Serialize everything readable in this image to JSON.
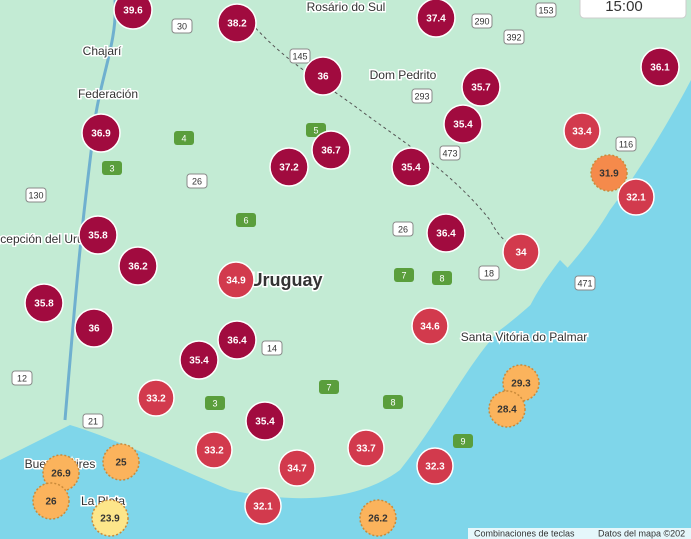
{
  "time": "15:00",
  "markers": [
    {
      "value": 39.6,
      "color": "#a10b3f"
    },
    {
      "value": 38.2,
      "color": "#a10b3f"
    },
    {
      "value": 37.4,
      "color": "#a10b3f"
    },
    {
      "value": 36,
      "color": "#a10b3f"
    },
    {
      "value": 35.7,
      "color": "#a10b3f"
    },
    {
      "value": 36.1,
      "color": "#a10b3f"
    },
    {
      "value": 36.9,
      "color": "#a10b3f"
    },
    {
      "value": 35.4,
      "color": "#a10b3f"
    },
    {
      "value": 33.4,
      "color": "#d23a4d"
    },
    {
      "value": 36.7,
      "color": "#a10b3f"
    },
    {
      "value": 37.2,
      "color": "#a10b3f"
    },
    {
      "value": 35.4,
      "color": "#a10b3f"
    },
    {
      "value": 31.9,
      "color": "#f58a4b"
    },
    {
      "value": 32.1,
      "color": "#d23a4d"
    },
    {
      "value": 35.8,
      "color": "#a10b3f"
    },
    {
      "value": 36.4,
      "color": "#a10b3f"
    },
    {
      "value": 34,
      "color": "#d23a4d"
    },
    {
      "value": 36.2,
      "color": "#a10b3f"
    },
    {
      "value": 34.9,
      "color": "#d23a4d"
    },
    {
      "value": 35.8,
      "color": "#a10b3f"
    },
    {
      "value": 36,
      "color": "#a10b3f"
    },
    {
      "value": 34.6,
      "color": "#d23a4d"
    },
    {
      "value": 36.4,
      "color": "#a10b3f"
    },
    {
      "value": 35.4,
      "color": "#a10b3f"
    },
    {
      "value": 29.3,
      "color": "#fbb35c"
    },
    {
      "value": 33.2,
      "color": "#d23a4d"
    },
    {
      "value": 28.4,
      "color": "#fbb35c"
    },
    {
      "value": 35.4,
      "color": "#a10b3f"
    },
    {
      "value": 33.2,
      "color": "#d23a4d"
    },
    {
      "value": 33.7,
      "color": "#d23a4d"
    },
    {
      "value": 34.7,
      "color": "#d23a4d"
    },
    {
      "value": 32.3,
      "color": "#d23a4d"
    },
    {
      "value": 26.9,
      "color": "#fbb35c"
    },
    {
      "value": 25,
      "color": "#fbb35c"
    },
    {
      "value": 26,
      "color": "#fbb35c"
    },
    {
      "value": 32.1,
      "color": "#d23a4d"
    },
    {
      "value": 26.2,
      "color": "#fbb35c"
    },
    {
      "value": 23.9,
      "color": "#fde68a"
    }
  ],
  "places": [
    "Rosário do Sul",
    "Chajarí",
    "Federación",
    "Dom Pedrito",
    "Concepción del Uruguay",
    "Uruguay",
    "Santa Vitória do Palmar",
    "La Plata",
    "Buenos Aires"
  ],
  "roads": [
    "30",
    "290",
    "153",
    "392",
    "293",
    "145",
    "116",
    "4",
    "26",
    "473",
    "130",
    "3",
    "5",
    "26",
    "7",
    "8",
    "18",
    "471",
    "14",
    "12",
    "21",
    "3",
    "8",
    "9",
    "6",
    "7"
  ],
  "footer": {
    "shortcuts": "Combinaciones de teclas",
    "data": "Datos del mapa ©202"
  }
}
